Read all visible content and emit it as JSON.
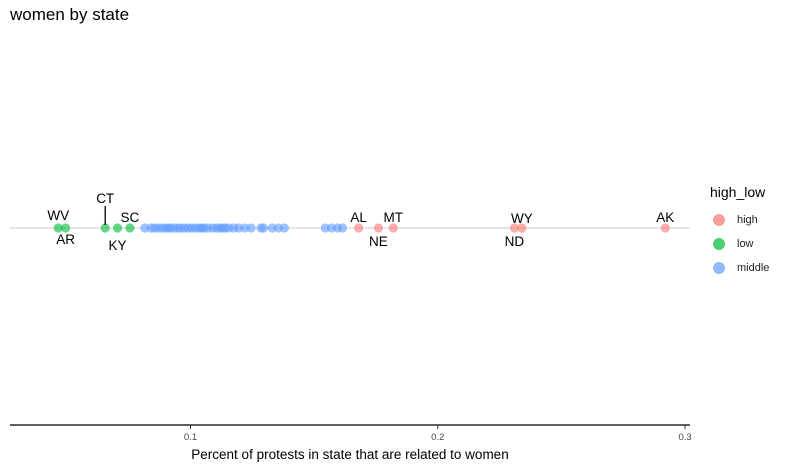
{
  "chart_data": {
    "type": "scatter",
    "title": "women by state",
    "xlabel": "Percent of protests in state that are related to women",
    "ylabel": "",
    "xlim": [
      0.027,
      0.302
    ],
    "xticks": [
      0.1,
      0.2,
      0.3
    ],
    "xtick_labels": [
      "0.1",
      "0.2",
      "0.3"
    ],
    "y_axis": "none (all points on a single row)",
    "grid": false,
    "legend": {
      "title": "high_low",
      "placement": "right",
      "entries": [
        "high",
        "low",
        "middle"
      ]
    },
    "colors": {
      "high": "#F8766D",
      "low": "#00BA38",
      "middle": "#619CFF"
    },
    "series": [
      {
        "name": "high",
        "points": [
          {
            "label": "AL",
            "x": 0.168
          },
          {
            "label": "NE",
            "x": 0.176
          },
          {
            "label": "MT",
            "x": 0.182
          },
          {
            "label": "ND",
            "x": 0.231
          },
          {
            "label": "WY",
            "x": 0.234
          },
          {
            "label": "AK",
            "x": 0.292
          }
        ]
      },
      {
        "name": "low",
        "points": [
          {
            "label": "WV",
            "x": 0.0465
          },
          {
            "label": "AR",
            "x": 0.0495
          },
          {
            "label": "CT",
            "x": 0.0655
          },
          {
            "label": "KY",
            "x": 0.0705
          },
          {
            "label": "SC",
            "x": 0.0755
          }
        ]
      },
      {
        "name": "middle",
        "values": [
          0.0815,
          0.084,
          0.0855,
          0.087,
          0.0885,
          0.09,
          0.091,
          0.092,
          0.0935,
          0.095,
          0.096,
          0.0975,
          0.099,
          0.1005,
          0.102,
          0.1035,
          0.1045,
          0.1055,
          0.107,
          0.109,
          0.1105,
          0.112,
          0.113,
          0.114,
          0.1155,
          0.1175,
          0.1195,
          0.122,
          0.1245,
          0.1285,
          0.1295,
          0.133,
          0.1355,
          0.138,
          0.1545,
          0.157,
          0.1595,
          0.1615
        ]
      }
    ]
  }
}
